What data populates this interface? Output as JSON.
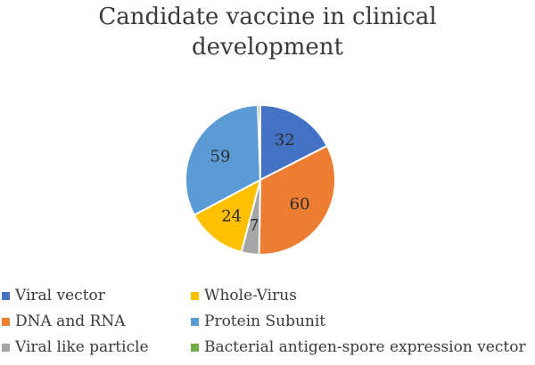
{
  "chart_data": {
    "type": "pie",
    "title_lines": [
      "Candidate vaccine in clinical",
      "development"
    ],
    "slices": [
      {
        "label": "Viral vector",
        "value": 32,
        "color": "#4472c4"
      },
      {
        "label": "DNA and RNA",
        "value": 60,
        "color": "#ed7d31"
      },
      {
        "label": "Viral like particle",
        "value": 7,
        "color": "#a5a5a5"
      },
      {
        "label": "Whole-Virus",
        "value": 24,
        "color": "#ffc000"
      },
      {
        "label": "Protein Subunit",
        "value": 59,
        "color": "#5b9bd5"
      },
      {
        "label": "Bacterial antigen-spore expression vector",
        "value": 1,
        "color": "#70ad47"
      }
    ],
    "legend_placement": "bottom"
  }
}
